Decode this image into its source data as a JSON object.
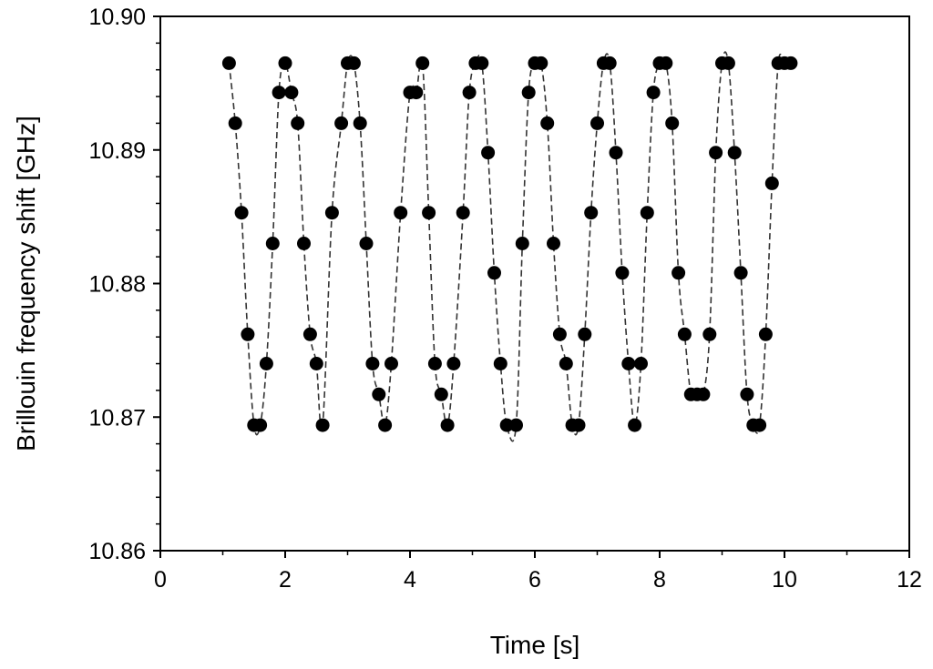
{
  "chart_data": {
    "type": "scatter",
    "title": "",
    "xlabel": "Time [s]",
    "ylabel": "Brillouin frequency shift [GHz]",
    "xlim": [
      0,
      12
    ],
    "ylim": [
      10.86,
      10.9
    ],
    "x_ticks": [
      "0",
      "2",
      "4",
      "6",
      "8",
      "10",
      "12"
    ],
    "y_ticks": [
      "10.86",
      "10.87",
      "10.88",
      "10.89",
      "10.90"
    ],
    "grid": false,
    "legend": "none",
    "marker_color": "#000000",
    "line_style": "dashed",
    "series": [
      {
        "points": [
          [
            1.1,
            10.8965
          ],
          [
            1.2,
            10.892
          ],
          [
            1.3,
            10.8853
          ],
          [
            1.4,
            10.8762
          ],
          [
            1.5,
            10.8694
          ],
          [
            1.6,
            10.8694
          ],
          [
            1.7,
            10.874
          ],
          [
            1.8,
            10.883
          ],
          [
            1.9,
            10.8943
          ],
          [
            2.0,
            10.8965
          ],
          [
            2.1,
            10.8943
          ],
          [
            2.2,
            10.892
          ],
          [
            2.3,
            10.883
          ],
          [
            2.4,
            10.8762
          ],
          [
            2.5,
            10.874
          ],
          [
            2.6,
            10.8694
          ],
          [
            2.75,
            10.8853
          ],
          [
            2.9,
            10.892
          ],
          [
            3.0,
            10.8965
          ],
          [
            3.1,
            10.8965
          ],
          [
            3.2,
            10.892
          ],
          [
            3.3,
            10.883
          ],
          [
            3.4,
            10.874
          ],
          [
            3.5,
            10.8717
          ],
          [
            3.6,
            10.8694
          ],
          [
            3.7,
            10.874
          ],
          [
            3.85,
            10.8853
          ],
          [
            4.0,
            10.8943
          ],
          [
            4.1,
            10.8943
          ],
          [
            4.2,
            10.8965
          ],
          [
            4.3,
            10.8853
          ],
          [
            4.4,
            10.874
          ],
          [
            4.5,
            10.8717
          ],
          [
            4.6,
            10.8694
          ],
          [
            4.7,
            10.874
          ],
          [
            4.85,
            10.8853
          ],
          [
            4.95,
            10.8943
          ],
          [
            5.05,
            10.8965
          ],
          [
            5.15,
            10.8965
          ],
          [
            5.25,
            10.8898
          ],
          [
            5.35,
            10.8808
          ],
          [
            5.45,
            10.874
          ],
          [
            5.55,
            10.8694
          ],
          [
            5.7,
            10.8694
          ],
          [
            5.8,
            10.883
          ],
          [
            5.9,
            10.8943
          ],
          [
            6.0,
            10.8965
          ],
          [
            6.1,
            10.8965
          ],
          [
            6.2,
            10.892
          ],
          [
            6.3,
            10.883
          ],
          [
            6.4,
            10.8762
          ],
          [
            6.5,
            10.874
          ],
          [
            6.6,
            10.8694
          ],
          [
            6.7,
            10.8694
          ],
          [
            6.8,
            10.8762
          ],
          [
            6.9,
            10.8853
          ],
          [
            7.0,
            10.892
          ],
          [
            7.1,
            10.8965
          ],
          [
            7.2,
            10.8965
          ],
          [
            7.3,
            10.8898
          ],
          [
            7.4,
            10.8808
          ],
          [
            7.5,
            10.874
          ],
          [
            7.6,
            10.8694
          ],
          [
            7.7,
            10.874
          ],
          [
            7.8,
            10.8853
          ],
          [
            7.9,
            10.8943
          ],
          [
            8.0,
            10.8965
          ],
          [
            8.1,
            10.8965
          ],
          [
            8.2,
            10.892
          ],
          [
            8.3,
            10.8808
          ],
          [
            8.4,
            10.8762
          ],
          [
            8.5,
            10.8717
          ],
          [
            8.6,
            10.8717
          ],
          [
            8.7,
            10.8717
          ],
          [
            8.8,
            10.8762
          ],
          [
            8.9,
            10.8898
          ],
          [
            9.0,
            10.8965
          ],
          [
            9.1,
            10.8965
          ],
          [
            9.2,
            10.8898
          ],
          [
            9.3,
            10.8808
          ],
          [
            9.4,
            10.8717
          ],
          [
            9.5,
            10.8694
          ],
          [
            9.6,
            10.8694
          ],
          [
            9.7,
            10.8762
          ],
          [
            9.8,
            10.8875
          ],
          [
            9.9,
            10.8965
          ],
          [
            10.0,
            10.8965
          ],
          [
            10.1,
            10.8965
          ]
        ]
      }
    ]
  }
}
